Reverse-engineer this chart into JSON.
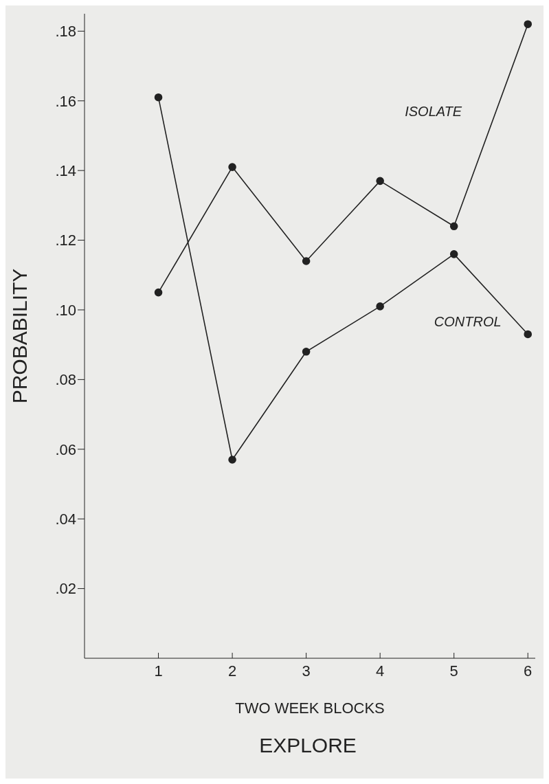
{
  "chart_data": {
    "type": "line",
    "xlabel": "TWO WEEK BLOCKS",
    "ylabel": "PROBABILITY",
    "annotations": [
      "EXPLORE"
    ],
    "x": [
      1,
      2,
      3,
      4,
      5,
      6
    ],
    "series": [
      {
        "name": "ISOLATE",
        "color": "#222222",
        "values": [
          0.105,
          0.141,
          0.114,
          0.137,
          0.124,
          0.182
        ]
      },
      {
        "name": "CONTROL",
        "color": "#222222",
        "values": [
          0.161,
          0.057,
          0.088,
          0.101,
          0.116,
          0.093
        ]
      }
    ],
    "xlim": [
      0,
      6.1
    ],
    "xticks": [
      1,
      2,
      3,
      4,
      5,
      6
    ],
    "ylim": [
      0,
      0.185
    ],
    "yticks": [
      {
        "value": 0.02,
        "label": ".02"
      },
      {
        "value": 0.04,
        "label": ".04"
      },
      {
        "value": 0.06,
        "label": ".06"
      },
      {
        "value": 0.08,
        "label": ".08"
      },
      {
        "value": 0.1,
        "label": ".10"
      },
      {
        "value": 0.12,
        "label": ".12"
      },
      {
        "value": 0.14,
        "label": ".14"
      },
      {
        "value": 0.16,
        "label": ".16"
      },
      {
        "value": 0.18,
        "label": ".18"
      }
    ],
    "marker": "circle",
    "line_style": "solid",
    "grid": false,
    "legend": false
  }
}
